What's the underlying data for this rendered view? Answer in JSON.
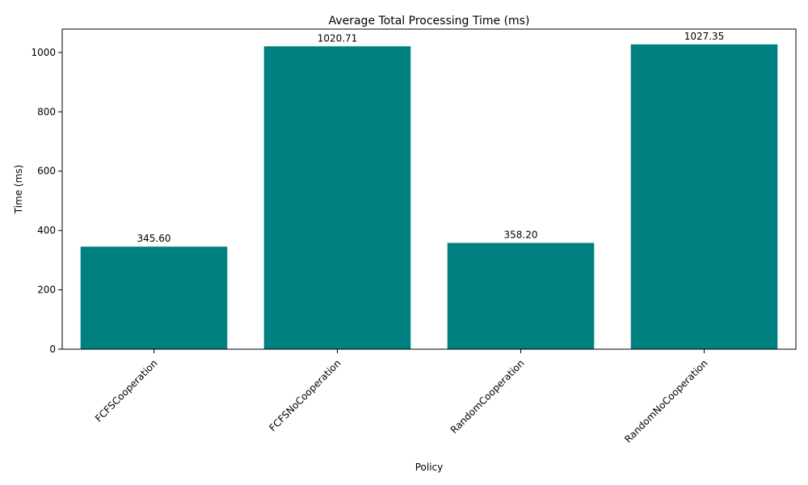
{
  "chart_data": {
    "type": "bar",
    "title": "Average Total Processing Time (ms)",
    "xlabel": "Policy",
    "ylabel": "Time (ms)",
    "categories": [
      "FCFSCooperation",
      "FCFSNoCooperation",
      "RandomCooperation",
      "RandomNoCooperation"
    ],
    "values": [
      345.6,
      1020.71,
      358.2,
      1027.35
    ],
    "value_labels": [
      "345.60",
      "1020.71",
      "358.20",
      "1027.35"
    ],
    "yticks": [
      0,
      200,
      400,
      600,
      800,
      1000
    ],
    "ytick_labels": [
      "0",
      "200",
      "400",
      "600",
      "800",
      "1000"
    ],
    "ylim": [
      0,
      1078.7
    ],
    "bar_color": "#008080",
    "grid": false,
    "legend": "none"
  }
}
